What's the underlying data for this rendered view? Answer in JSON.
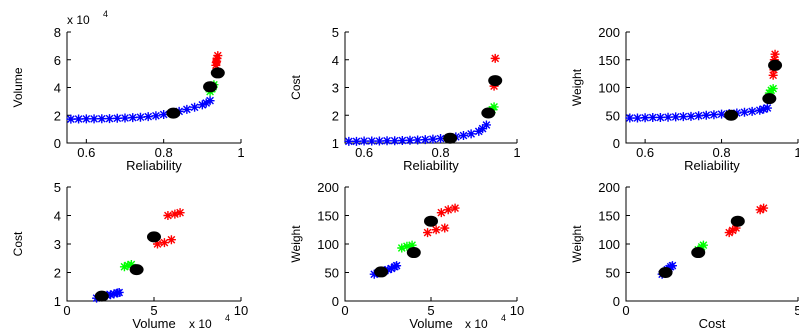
{
  "chart_data": [
    {
      "type": "scatter",
      "xlabel": "Reliability",
      "ylabel": "Volume",
      "xlim": [
        0.55,
        1.0
      ],
      "ylim": [
        0,
        8
      ],
      "xticks": [
        0.6,
        0.8,
        1
      ],
      "xtick_labels": [
        "0.6",
        "0.8",
        "1"
      ],
      "yticks": [
        0,
        2,
        4,
        6,
        8
      ],
      "ytick_labels": [
        "0",
        "2",
        "4",
        "6",
        "8"
      ],
      "y_exponent": "x 10",
      "y_exponent_power": "4",
      "series": [
        {
          "color": "#0000ff",
          "marker": "star",
          "points": [
            [
              0.56,
              1.72
            ],
            [
              0.58,
              1.73
            ],
            [
              0.6,
              1.74
            ],
            [
              0.62,
              1.74
            ],
            [
              0.64,
              1.75
            ],
            [
              0.66,
              1.76
            ],
            [
              0.68,
              1.78
            ],
            [
              0.7,
              1.8
            ],
            [
              0.72,
              1.83
            ],
            [
              0.74,
              1.86
            ],
            [
              0.76,
              1.9
            ],
            [
              0.78,
              1.96
            ],
            [
              0.8,
              2.05
            ],
            [
              0.82,
              2.15
            ],
            [
              0.84,
              2.28
            ],
            [
              0.86,
              2.42
            ],
            [
              0.88,
              2.58
            ],
            [
              0.9,
              2.75
            ],
            [
              0.91,
              2.88
            ],
            [
              0.92,
              3.05
            ]
          ]
        },
        {
          "color": "#00ff00",
          "marker": "star",
          "points": [
            [
              0.92,
              3.7
            ],
            [
              0.925,
              3.9
            ],
            [
              0.93,
              4.2
            ],
            [
              0.928,
              4.05
            ]
          ]
        },
        {
          "color": "#ff0000",
          "marker": "star",
          "points": [
            [
              0.935,
              5.6
            ],
            [
              0.937,
              5.9
            ],
            [
              0.938,
              6.1
            ],
            [
              0.94,
              6.3
            ],
            [
              0.936,
              5.8
            ]
          ]
        },
        {
          "color": "#000000",
          "marker": "dot",
          "points": [
            [
              0.825,
              2.15
            ],
            [
              0.92,
              4.05
            ],
            [
              0.94,
              5.05
            ]
          ]
        }
      ]
    },
    {
      "type": "scatter",
      "xlabel": "Reliability",
      "ylabel": "Cost",
      "xlim": [
        0.55,
        1.0
      ],
      "ylim": [
        1,
        5
      ],
      "xticks": [
        0.6,
        0.8,
        1
      ],
      "xtick_labels": [
        "0.6",
        "0.8",
        "1"
      ],
      "yticks": [
        1,
        2,
        3,
        4,
        5
      ],
      "ytick_labels": [
        "1",
        "2",
        "3",
        "4",
        "5"
      ],
      "series": [
        {
          "color": "#0000ff",
          "marker": "star",
          "points": [
            [
              0.56,
              1.06
            ],
            [
              0.58,
              1.06
            ],
            [
              0.6,
              1.07
            ],
            [
              0.62,
              1.07
            ],
            [
              0.64,
              1.07
            ],
            [
              0.66,
              1.08
            ],
            [
              0.68,
              1.08
            ],
            [
              0.7,
              1.09
            ],
            [
              0.72,
              1.1
            ],
            [
              0.74,
              1.11
            ],
            [
              0.76,
              1.12
            ],
            [
              0.78,
              1.14
            ],
            [
              0.8,
              1.16
            ],
            [
              0.82,
              1.18
            ],
            [
              0.84,
              1.22
            ],
            [
              0.86,
              1.27
            ],
            [
              0.88,
              1.33
            ],
            [
              0.9,
              1.42
            ],
            [
              0.91,
              1.52
            ],
            [
              0.92,
              1.65
            ]
          ]
        },
        {
          "color": "#00ff00",
          "marker": "star",
          "points": [
            [
              0.93,
              2.15
            ],
            [
              0.935,
              2.2
            ],
            [
              0.94,
              2.3
            ]
          ]
        },
        {
          "color": "#ff0000",
          "marker": "star",
          "points": [
            [
              0.94,
              3.05
            ],
            [
              0.942,
              3.2
            ],
            [
              0.943,
              4.05
            ]
          ]
        },
        {
          "color": "#000000",
          "marker": "dot",
          "points": [
            [
              0.825,
              1.17
            ],
            [
              0.925,
              2.08
            ],
            [
              0.943,
              3.25
            ]
          ]
        }
      ]
    },
    {
      "type": "scatter",
      "xlabel": "Reliability",
      "ylabel": "Weight",
      "xlim": [
        0.55,
        1.0
      ],
      "ylim": [
        0,
        200
      ],
      "xticks": [
        0.6,
        0.8,
        1
      ],
      "xtick_labels": [
        "0.6",
        "0.8",
        "1"
      ],
      "yticks": [
        0,
        50,
        100,
        150,
        200
      ],
      "ytick_labels": [
        "0",
        "50",
        "100",
        "150",
        "200"
      ],
      "series": [
        {
          "color": "#0000ff",
          "marker": "star",
          "points": [
            [
              0.56,
              45
            ],
            [
              0.58,
              45
            ],
            [
              0.6,
              45.5
            ],
            [
              0.62,
              46
            ],
            [
              0.64,
              46
            ],
            [
              0.66,
              46.5
            ],
            [
              0.68,
              47
            ],
            [
              0.7,
              47.5
            ],
            [
              0.72,
              48
            ],
            [
              0.74,
              49
            ],
            [
              0.76,
              50
            ],
            [
              0.78,
              51
            ],
            [
              0.8,
              52
            ],
            [
              0.82,
              53
            ],
            [
              0.84,
              54
            ],
            [
              0.86,
              55.5
            ],
            [
              0.88,
              57
            ],
            [
              0.9,
              59
            ],
            [
              0.91,
              61
            ],
            [
              0.92,
              63
            ]
          ]
        },
        {
          "color": "#00ff00",
          "marker": "star",
          "points": [
            [
              0.925,
              90
            ],
            [
              0.93,
              95
            ],
            [
              0.935,
              98
            ]
          ]
        },
        {
          "color": "#ff0000",
          "marker": "star",
          "points": [
            [
              0.935,
              122
            ],
            [
              0.937,
              132
            ],
            [
              0.94,
              160
            ],
            [
              0.938,
              150
            ]
          ]
        },
        {
          "color": "#000000",
          "marker": "dot",
          "points": [
            [
              0.825,
              50
            ],
            [
              0.925,
              80
            ],
            [
              0.94,
              140
            ]
          ]
        }
      ]
    },
    {
      "type": "scatter",
      "xlabel": "Volume",
      "ylabel": "Cost",
      "xlim": [
        0,
        10
      ],
      "ylim": [
        1,
        5
      ],
      "xticks": [
        0,
        5,
        10
      ],
      "xtick_labels": [
        "0",
        "5",
        "10"
      ],
      "yticks": [
        1,
        2,
        3,
        4,
        5
      ],
      "ytick_labels": [
        "1",
        "2",
        "3",
        "4",
        "5"
      ],
      "x_exponent": "x 10",
      "x_exponent_power": "4",
      "series": [
        {
          "color": "#0000ff",
          "marker": "star",
          "points": [
            [
              1.7,
              1.1
            ],
            [
              1.9,
              1.15
            ],
            [
              2.1,
              1.18
            ],
            [
              2.3,
              1.2
            ],
            [
              2.5,
              1.22
            ],
            [
              2.7,
              1.25
            ],
            [
              2.9,
              1.28
            ],
            [
              3.0,
              1.3
            ]
          ]
        },
        {
          "color": "#00ff00",
          "marker": "star",
          "points": [
            [
              3.3,
              2.2
            ],
            [
              3.5,
              2.25
            ],
            [
              3.7,
              2.28
            ]
          ]
        },
        {
          "color": "#ff0000",
          "marker": "star",
          "points": [
            [
              5.2,
              3.0
            ],
            [
              5.6,
              3.05
            ],
            [
              6.0,
              3.15
            ],
            [
              5.8,
              4.0
            ],
            [
              6.2,
              4.05
            ],
            [
              6.5,
              4.1
            ]
          ]
        },
        {
          "color": "#000000",
          "marker": "dot",
          "points": [
            [
              2.0,
              1.17
            ],
            [
              4.0,
              2.1
            ],
            [
              5.0,
              3.25
            ]
          ]
        }
      ]
    },
    {
      "type": "scatter",
      "xlabel": "Volume",
      "ylabel": "Weight",
      "xlim": [
        0,
        10
      ],
      "ylim": [
        0,
        200
      ],
      "xticks": [
        0,
        5,
        10
      ],
      "xtick_labels": [
        "0",
        "5",
        "10"
      ],
      "yticks": [
        0,
        50,
        100,
        150,
        200
      ],
      "ytick_labels": [
        "0",
        "50",
        "100",
        "150",
        "200"
      ],
      "x_exponent": "x 10",
      "x_exponent_power": "4",
      "series": [
        {
          "color": "#0000ff",
          "marker": "star",
          "points": [
            [
              1.7,
              47
            ],
            [
              1.9,
              49
            ],
            [
              2.1,
              51
            ],
            [
              2.3,
              53
            ],
            [
              2.5,
              55
            ],
            [
              2.7,
              57
            ],
            [
              2.9,
              60
            ],
            [
              3.0,
              62
            ]
          ]
        },
        {
          "color": "#00ff00",
          "marker": "star",
          "points": [
            [
              3.3,
              93
            ],
            [
              3.6,
              96
            ],
            [
              3.9,
              98
            ]
          ]
        },
        {
          "color": "#ff0000",
          "marker": "star",
          "points": [
            [
              4.8,
              120
            ],
            [
              5.3,
              125
            ],
            [
              5.8,
              128
            ],
            [
              5.6,
              155
            ],
            [
              6.0,
              160
            ],
            [
              6.4,
              163
            ]
          ]
        },
        {
          "color": "#000000",
          "marker": "dot",
          "points": [
            [
              2.1,
              51
            ],
            [
              4.0,
              85
            ],
            [
              5.0,
              140
            ]
          ]
        }
      ]
    },
    {
      "type": "scatter",
      "xlabel": "Cost",
      "ylabel": "Weight",
      "xlim": [
        0,
        5
      ],
      "ylim": [
        0,
        200
      ],
      "xticks": [
        0,
        5
      ],
      "xtick_labels": [
        "0",
        "5"
      ],
      "yticks": [
        0,
        50,
        100,
        150,
        200
      ],
      "ytick_labels": [
        "0",
        "50",
        "100",
        "150",
        "200"
      ],
      "series": [
        {
          "color": "#0000ff",
          "marker": "star",
          "points": [
            [
              1.05,
              47
            ],
            [
              1.1,
              49
            ],
            [
              1.15,
              52
            ],
            [
              1.2,
              55
            ],
            [
              1.25,
              57
            ],
            [
              1.3,
              60
            ],
            [
              1.35,
              62
            ]
          ]
        },
        {
          "color": "#00ff00",
          "marker": "star",
          "points": [
            [
              2.1,
              90
            ],
            [
              2.2,
              95
            ],
            [
              2.25,
              98
            ]
          ]
        },
        {
          "color": "#ff0000",
          "marker": "star",
          "points": [
            [
              3.0,
              120
            ],
            [
              3.1,
              124
            ],
            [
              3.2,
              128
            ],
            [
              3.9,
              160
            ],
            [
              4.0,
              163
            ]
          ]
        },
        {
          "color": "#000000",
          "marker": "dot",
          "points": [
            [
              1.15,
              50
            ],
            [
              2.1,
              85
            ],
            [
              3.25,
              140
            ]
          ]
        }
      ]
    }
  ]
}
